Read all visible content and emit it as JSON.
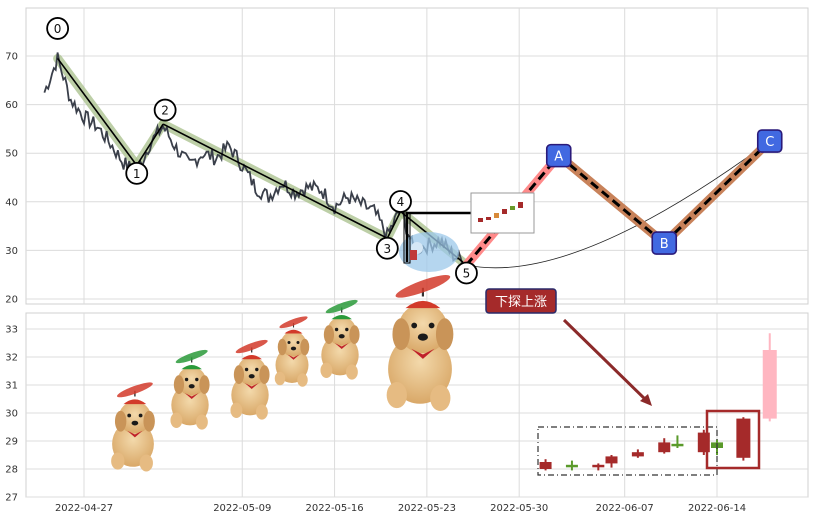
{
  "chart_data": [
    {
      "type": "line",
      "panel": "price",
      "ylim": [
        19,
        80
      ],
      "yticks": [
        20,
        30,
        40,
        50,
        60,
        70
      ],
      "grid": true,
      "series": [
        {
          "values": [
            [
              "2022-04-24",
              62.5
            ],
            [
              "2022-04-25",
              69.5
            ],
            [
              "2022-04-26",
              61
            ],
            [
              "2022-04-27",
              57.5
            ],
            [
              "2022-04-28",
              55.5
            ],
            [
              "2022-04-29",
              52
            ],
            [
              "2022-04-30",
              48
            ],
            [
              "2022-05-01",
              46
            ],
            [
              "2022-05-02",
              52
            ],
            [
              "2022-05-03",
              55.5
            ],
            [
              "2022-05-04",
              51
            ],
            [
              "2022-05-05",
              47.5
            ],
            [
              "2022-05-06",
              50
            ],
            [
              "2022-05-07",
              49
            ],
            [
              "2022-05-08",
              51.5
            ],
            [
              "2022-05-09",
              47.5
            ],
            [
              "2022-05-10",
              43
            ],
            [
              "2022-05-11",
              41
            ],
            [
              "2022-05-12",
              44
            ],
            [
              "2022-05-13",
              42
            ],
            [
              "2022-05-14",
              43
            ],
            [
              "2022-05-15",
              42.5
            ],
            [
              "2022-05-16",
              39
            ],
            [
              "2022-05-17",
              41
            ],
            [
              "2022-05-18",
              39.5
            ],
            [
              "2022-05-19",
              38
            ],
            [
              "2022-05-20",
              33
            ],
            [
              "2022-05-21",
              38.5
            ],
            [
              "2022-05-22",
              30
            ],
            [
              "2022-05-23",
              31
            ],
            [
              "2022-05-24",
              32
            ],
            [
              "2022-05-25",
              29
            ],
            [
              "2022-05-26",
              27.5
            ]
          ]
        }
      ],
      "wave_points": [
        {
          "label": "0",
          "date": "2022-04-25",
          "value": 69.5
        },
        {
          "label": "1",
          "date": "2022-05-01",
          "value": 47.5
        },
        {
          "label": "2",
          "date": "2022-05-03",
          "value": 56
        },
        {
          "label": "3",
          "date": "2022-05-20",
          "value": 32.5
        },
        {
          "label": "4",
          "date": "2022-05-21",
          "value": 38
        },
        {
          "label": "5",
          "date": "2022-05-26",
          "value": 27
        }
      ],
      "projection_points": [
        {
          "label": "A",
          "date": "2022-06-02",
          "value": 49.5
        },
        {
          "label": "B",
          "date": "2022-06-10",
          "value": 31.5
        },
        {
          "label": "C",
          "date": "2022-06-18",
          "value": 52.5
        }
      ]
    },
    {
      "type": "candlestick",
      "panel": "forecast",
      "ylim": [
        27,
        33.6
      ],
      "yticks": [
        27,
        28,
        29,
        30,
        31,
        32,
        33
      ],
      "grid": true,
      "xticks": [
        "2022-04-27",
        "2022-05-09",
        "2022-05-16",
        "2022-05-23",
        "2022-05-30",
        "2022-06-07",
        "2022-06-14"
      ],
      "candles": [
        {
          "date": "2022-06-01",
          "open": 28.25,
          "close": 28.0,
          "high": 28.35,
          "low": 27.95,
          "color": "#a52a2a"
        },
        {
          "date": "2022-06-03",
          "open": 28.1,
          "close": 28.15,
          "high": 28.3,
          "low": 27.95,
          "color": "#5a9a2a"
        },
        {
          "date": "2022-06-05",
          "open": 28.15,
          "close": 28.1,
          "high": 28.2,
          "low": 27.95,
          "color": "#a52a2a"
        },
        {
          "date": "2022-06-06",
          "open": 28.45,
          "close": 28.2,
          "high": 28.5,
          "low": 28.05,
          "color": "#a52a2a"
        },
        {
          "date": "2022-06-08",
          "open": 28.6,
          "close": 28.45,
          "high": 28.7,
          "low": 28.4,
          "color": "#a52a2a"
        },
        {
          "date": "2022-06-10",
          "open": 28.95,
          "close": 28.6,
          "high": 29.1,
          "low": 28.55,
          "color": "#a52a2a"
        },
        {
          "date": "2022-06-11",
          "open": 28.85,
          "close": 28.9,
          "high": 29.2,
          "low": 28.75,
          "color": "#5a9a2a"
        },
        {
          "date": "2022-06-13",
          "open": 29.3,
          "close": 28.6,
          "high": 29.4,
          "low": 28.5,
          "color": "#a52a2a"
        },
        {
          "date": "2022-06-14",
          "open": 28.75,
          "close": 28.95,
          "high": 29.05,
          "low": 28.5,
          "color": "#5a9a2a"
        },
        {
          "date": "2022-06-16",
          "open": 29.8,
          "close": 28.4,
          "high": 29.85,
          "low": 28.3,
          "color": "#a52a2a"
        },
        {
          "date": "2022-06-18",
          "open": 29.8,
          "close": 32.25,
          "high": 32.85,
          "low": 29.7,
          "color": "#ffb6c1"
        }
      ],
      "annotation": "下探上涨"
    }
  ],
  "colors": {
    "price_line": "#3a3f4a",
    "wave_band": "#a8c08a",
    "projection_down": "#ff8a8a",
    "projection_band": "#c8825a",
    "marker_fill": "#4169e1",
    "annotation_fill": "#a52a2a",
    "arrow": "#8b2a2a"
  },
  "decorations": [
    "flying-dog-images",
    "eye-icon"
  ]
}
